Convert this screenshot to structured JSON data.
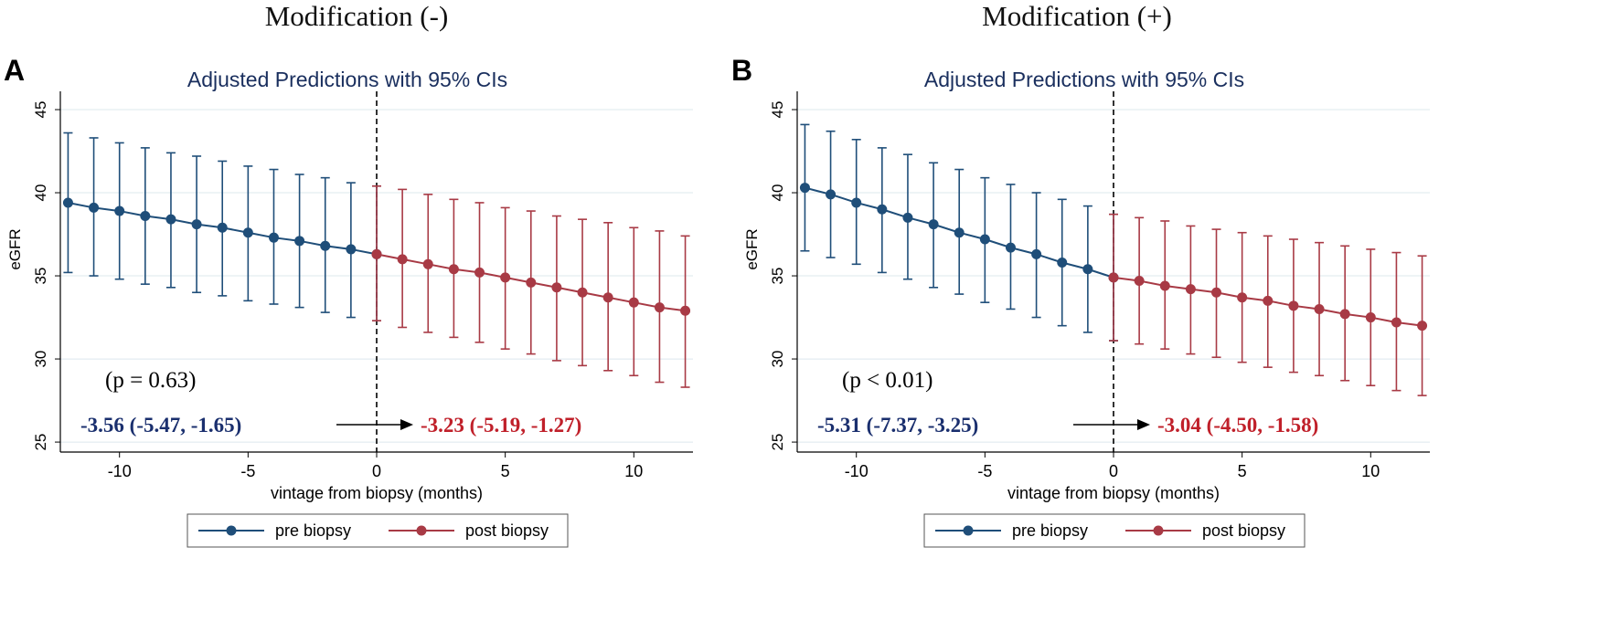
{
  "chart_data": [
    {
      "type": "line",
      "heading": "Modification (-)",
      "panel_letter": "A",
      "title": "Adjusted Predictions with 95% CIs",
      "xlabel": "vintage from biopsy (months)",
      "ylabel": "eGFR",
      "xlim": [
        -12.3,
        12.3
      ],
      "ylim": [
        24.4,
        46.1
      ],
      "xticks": [
        -10,
        -5,
        0,
        5,
        10
      ],
      "yticks": [
        25,
        30,
        35,
        40,
        45
      ],
      "grid": true,
      "legend_position": "bottom",
      "p_value_text": "(p = 0.63)",
      "pre_estimate_text": "-3.56 (-5.47, -1.65)",
      "post_estimate_text": "-3.23 (-5.19, -1.27)",
      "reference_line_x": 0,
      "series": [
        {
          "name": "pre biopsy",
          "color": "#1f4e79",
          "x": [
            -12,
            -11,
            -10,
            -9,
            -8,
            -7,
            -6,
            -5,
            -4,
            -3,
            -2,
            -1,
            0
          ],
          "y": [
            39.4,
            39.1,
            38.9,
            38.6,
            38.4,
            38.1,
            37.9,
            37.6,
            37.3,
            37.1,
            36.8,
            36.6,
            36.3
          ],
          "ci_low": [
            35.2,
            35.0,
            34.8,
            34.5,
            34.3,
            34.0,
            33.8,
            33.5,
            33.3,
            33.1,
            32.8,
            32.5,
            32.3
          ],
          "ci_high": [
            43.6,
            43.3,
            43.0,
            42.7,
            42.4,
            42.2,
            41.9,
            41.6,
            41.4,
            41.1,
            40.9,
            40.6,
            40.4
          ]
        },
        {
          "name": "post biopsy",
          "color": "#a83a45",
          "x": [
            0,
            1,
            2,
            3,
            4,
            5,
            6,
            7,
            8,
            9,
            10,
            11,
            12
          ],
          "y": [
            36.3,
            36.0,
            35.7,
            35.4,
            35.2,
            34.9,
            34.6,
            34.3,
            34.0,
            33.7,
            33.4,
            33.1,
            32.9
          ],
          "ci_low": [
            32.3,
            31.9,
            31.6,
            31.3,
            31.0,
            30.6,
            30.3,
            29.9,
            29.6,
            29.3,
            29.0,
            28.6,
            28.3
          ],
          "ci_high": [
            40.4,
            40.2,
            39.9,
            39.6,
            39.4,
            39.1,
            38.9,
            38.6,
            38.4,
            38.2,
            37.9,
            37.7,
            37.4
          ]
        }
      ]
    },
    {
      "type": "line",
      "heading": "Modification (+)",
      "panel_letter": "B",
      "title": "Adjusted Predictions with 95% CIs",
      "xlabel": "vintage from biopsy (months)",
      "ylabel": "eGFR",
      "xlim": [
        -12.3,
        12.3
      ],
      "ylim": [
        24.4,
        46.1
      ],
      "xticks": [
        -10,
        -5,
        0,
        5,
        10
      ],
      "yticks": [
        25,
        30,
        35,
        40,
        45
      ],
      "grid": true,
      "legend_position": "bottom",
      "p_value_text": "(p < 0.01)",
      "pre_estimate_text": "-5.31 (-7.37, -3.25)",
      "post_estimate_text": "-3.04 (-4.50, -1.58)",
      "reference_line_x": 0,
      "series": [
        {
          "name": "pre biopsy",
          "color": "#1f4e79",
          "x": [
            -12,
            -11,
            -10,
            -9,
            -8,
            -7,
            -6,
            -5,
            -4,
            -3,
            -2,
            -1,
            0
          ],
          "y": [
            40.3,
            39.9,
            39.4,
            39.0,
            38.5,
            38.1,
            37.6,
            37.2,
            36.7,
            36.3,
            35.8,
            35.4,
            34.9
          ],
          "ci_low": [
            36.5,
            36.1,
            35.7,
            35.2,
            34.8,
            34.3,
            33.9,
            33.4,
            33.0,
            32.5,
            32.0,
            31.6,
            31.1
          ],
          "ci_high": [
            44.1,
            43.7,
            43.2,
            42.7,
            42.3,
            41.8,
            41.4,
            40.9,
            40.5,
            40.0,
            39.6,
            39.2,
            38.7
          ]
        },
        {
          "name": "post biopsy",
          "color": "#a83a45",
          "x": [
            0,
            1,
            2,
            3,
            4,
            5,
            6,
            7,
            8,
            9,
            10,
            11,
            12
          ],
          "y": [
            34.9,
            34.7,
            34.4,
            34.2,
            34.0,
            33.7,
            33.5,
            33.2,
            33.0,
            32.7,
            32.5,
            32.2,
            32.0
          ],
          "ci_low": [
            31.1,
            30.9,
            30.6,
            30.3,
            30.1,
            29.8,
            29.5,
            29.2,
            29.0,
            28.7,
            28.4,
            28.1,
            27.8
          ],
          "ci_high": [
            38.7,
            38.5,
            38.3,
            38.0,
            37.8,
            37.6,
            37.4,
            37.2,
            37.0,
            36.8,
            36.6,
            36.4,
            36.2
          ]
        }
      ]
    }
  ]
}
